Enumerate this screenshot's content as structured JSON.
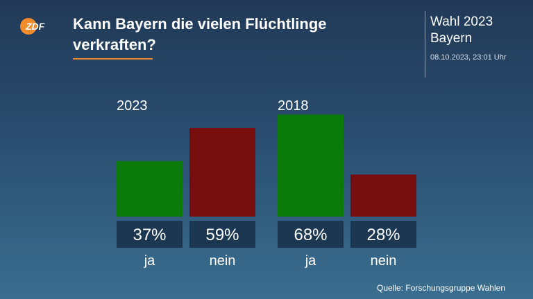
{
  "header": {
    "logo_text": "ZDF",
    "title": "Kann Bayern die vielen Flüchtlinge verkraften?",
    "badge_line1": "Wahl 2023",
    "badge_line2": "Bayern",
    "timestamp": "08.10.2023, 23:01 Uhr"
  },
  "footer": {
    "source": "Quelle: Forschungsgruppe Wahlen"
  },
  "colors": {
    "ja": "#0a7a0a",
    "nein": "#780f0f",
    "value_box": "#1c3752",
    "accent": "#f28b2b"
  },
  "chart_data": {
    "type": "bar",
    "title": "Kann Bayern die vielen Flüchtlinge verkraften?",
    "ylim": [
      0,
      100
    ],
    "grid": false,
    "groups": [
      {
        "label": "2023",
        "bars": [
          {
            "category": "ja",
            "value": 37,
            "display": "37%"
          },
          {
            "category": "nein",
            "value": 59,
            "display": "59%"
          }
        ]
      },
      {
        "label": "2018",
        "bars": [
          {
            "category": "ja",
            "value": 68,
            "display": "68%"
          },
          {
            "category": "nein",
            "value": 28,
            "display": "28%"
          }
        ]
      }
    ]
  }
}
